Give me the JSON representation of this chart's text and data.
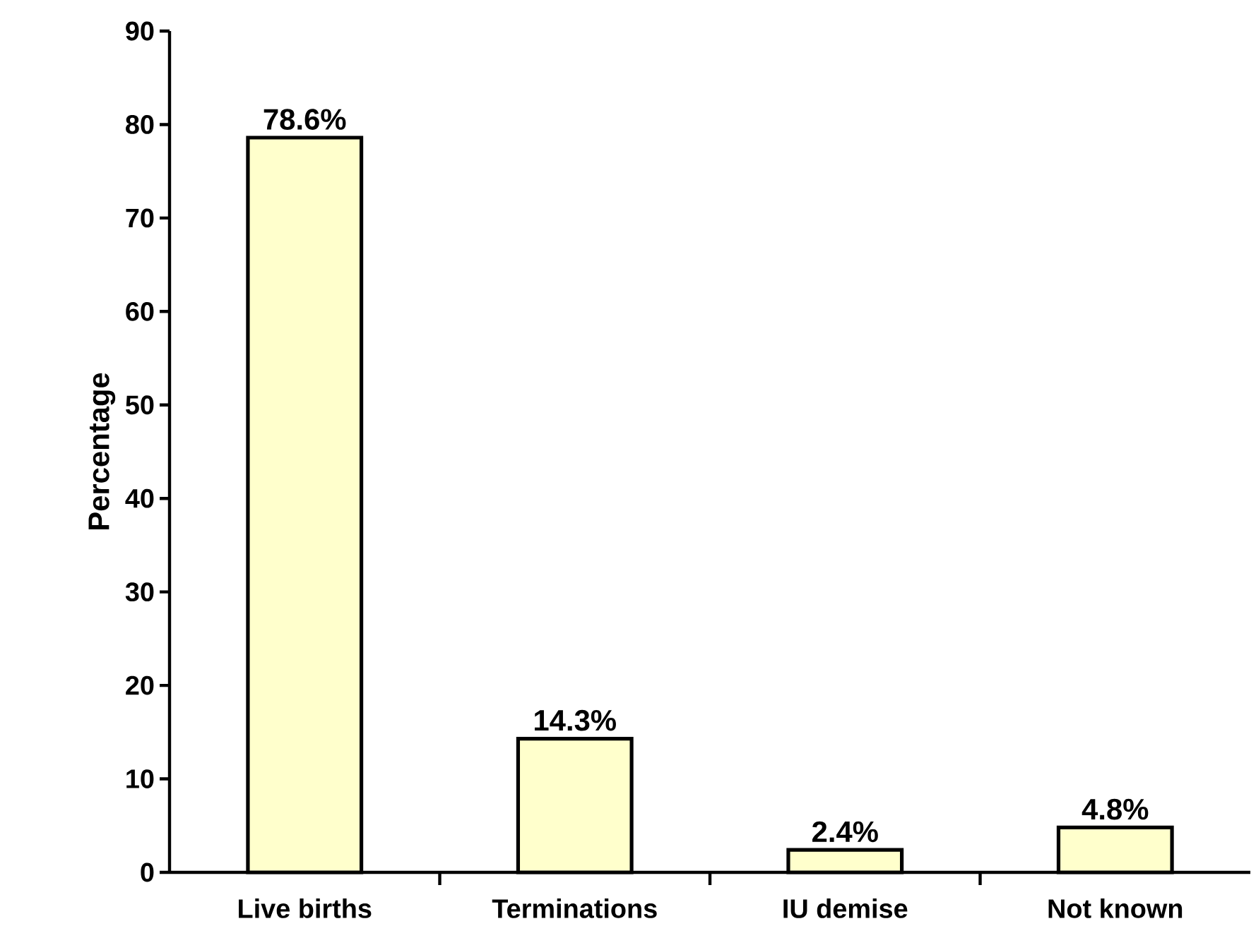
{
  "chart_data": {
    "type": "bar",
    "ylabel": "Percentage",
    "categories": [
      "Live births",
      "Terminations",
      "IU demise",
      "Not known"
    ],
    "values": [
      78.6,
      14.3,
      2.4,
      4.8
    ],
    "value_labels": [
      "78.6%",
      "14.3%",
      "2.4%",
      "4.8%"
    ],
    "color": "#ffffcc",
    "ylim": [
      0,
      90
    ],
    "yticks": [
      0,
      10,
      20,
      30,
      40,
      50,
      60,
      70,
      80,
      90
    ]
  }
}
